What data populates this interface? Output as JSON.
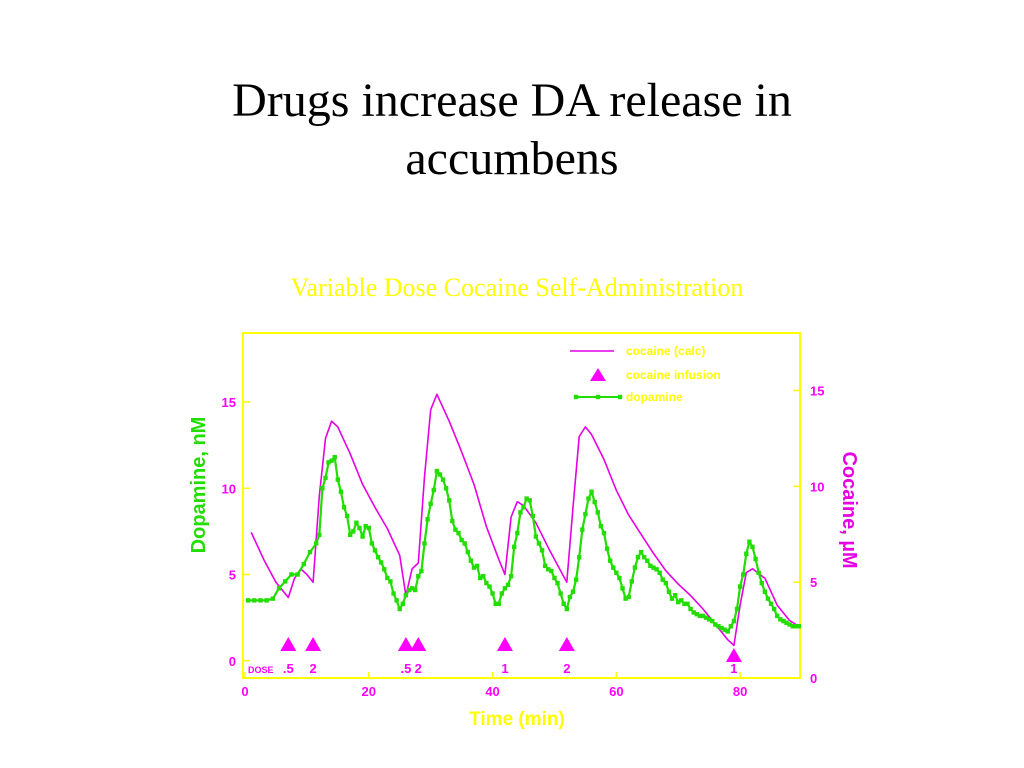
{
  "slide": {
    "title_line1": "Drugs increase DA release in",
    "title_line2": "accumbens"
  },
  "chart_data": {
    "type": "line",
    "title": "Variable Dose Cocaine Self-Administration",
    "xlabel": "Time (min)",
    "ylabel_left": "Dopamine, nM",
    "ylabel_right": "Cocaine, µM",
    "xlim": [
      0,
      90
    ],
    "ylim_left": [
      -1,
      19
    ],
    "ylim_right": [
      0,
      18
    ],
    "x_ticks": [
      0,
      20,
      40,
      60,
      80
    ],
    "y_ticks_left": [
      0,
      5,
      10,
      15
    ],
    "y_ticks_right": [
      0,
      5,
      10,
      15
    ],
    "colors": {
      "cocaine": "#e600e6",
      "dopamine": "#22dd00",
      "frame": "#ffff00",
      "title": "#ffff00",
      "xaxis_label": "#ffff00",
      "tick_labels": "#ff00ff"
    },
    "legend": {
      "placement": "top-right",
      "entries": [
        {
          "label": "cocaine (calc)",
          "kind": "line",
          "color": "#e600e6"
        },
        {
          "label": "cocaine infusion",
          "kind": "triangle",
          "color": "#ff00ff"
        },
        {
          "label": "dopamine",
          "kind": "line-square",
          "color": "#22dd00"
        }
      ]
    },
    "dose_label": "DOSE",
    "infusions": [
      {
        "time": 7,
        "dose": ".5"
      },
      {
        "time": 11,
        "dose": "2"
      },
      {
        "time": 26,
        "dose": ".5"
      },
      {
        "time": 28,
        "dose": "2"
      },
      {
        "time": 42,
        "dose": "1"
      },
      {
        "time": 52,
        "dose": "2"
      },
      {
        "time": 79,
        "dose": "1"
      }
    ],
    "series": [
      {
        "name": "cocaine (calc)",
        "axis": "right",
        "x": [
          1,
          3,
          5,
          7,
          8,
          9,
          10,
          11,
          12,
          13,
          14,
          15,
          17,
          19,
          21,
          23,
          25,
          26,
          27,
          28,
          29,
          30,
          31,
          33,
          35,
          37,
          39,
          41,
          42,
          43,
          44,
          45,
          47,
          49,
          51,
          52,
          53,
          54,
          55,
          56,
          58,
          60,
          62,
          64,
          66,
          68,
          70,
          72,
          74,
          76,
          78,
          79,
          80,
          81,
          82,
          84,
          86,
          88,
          89
        ],
        "values": [
          7.6,
          6.2,
          5.0,
          4.2,
          5.2,
          5.7,
          5.4,
          5.0,
          9.5,
          12.5,
          13.4,
          13.1,
          11.7,
          10.1,
          8.9,
          7.8,
          6.4,
          4.3,
          5.7,
          6.0,
          10.5,
          14.0,
          14.8,
          13.4,
          11.8,
          10.1,
          7.9,
          6.2,
          5.4,
          8.4,
          9.2,
          9.0,
          8.1,
          6.8,
          5.6,
          5.0,
          8.9,
          12.6,
          13.1,
          12.7,
          11.4,
          9.8,
          8.5,
          7.5,
          6.5,
          5.6,
          4.9,
          4.3,
          3.6,
          2.8,
          2.0,
          1.7,
          3.8,
          5.5,
          5.7,
          5.2,
          3.8,
          3.0,
          2.8
        ]
      },
      {
        "name": "dopamine",
        "axis": "left",
        "x": [
          0.5,
          1.5,
          2.5,
          3.5,
          4.5,
          5.5,
          6.5,
          7.5,
          8.5,
          9.5,
          10.5,
          11.5,
          12.0,
          12.5,
          13.0,
          13.5,
          14.0,
          14.5,
          15.0,
          15.5,
          16.0,
          16.5,
          17.0,
          17.5,
          18.0,
          18.5,
          19.0,
          19.5,
          20.0,
          20.5,
          21.0,
          21.5,
          22.0,
          22.5,
          23.0,
          23.5,
          24.0,
          24.5,
          25.0,
          25.5,
          26.0,
          26.5,
          27.0,
          27.5,
          28.0,
          28.5,
          29.0,
          29.5,
          30.0,
          30.5,
          31.0,
          31.5,
          32.0,
          32.5,
          33.0,
          33.5,
          34.0,
          34.5,
          35.0,
          35.5,
          36.0,
          36.5,
          37.0,
          37.5,
          38.0,
          38.5,
          39.0,
          39.5,
          40.0,
          40.5,
          41.0,
          41.5,
          42.0,
          42.5,
          43.0,
          43.5,
          44.0,
          44.5,
          45.0,
          45.5,
          46.0,
          46.5,
          47.0,
          47.5,
          48.0,
          48.5,
          49.0,
          49.5,
          50.0,
          50.5,
          51.0,
          51.5,
          52.0,
          52.5,
          53.0,
          53.5,
          54.0,
          54.5,
          55.0,
          55.5,
          56.0,
          56.5,
          57.0,
          57.5,
          58.0,
          58.5,
          59.0,
          59.5,
          60.0,
          60.5,
          61.0,
          61.5,
          62.0,
          62.5,
          63.0,
          63.5,
          64.0,
          64.5,
          65.0,
          65.5,
          66.0,
          66.5,
          67.0,
          67.5,
          68.0,
          68.5,
          69.0,
          69.5,
          70.0,
          70.5,
          71.0,
          71.5,
          72.0,
          72.5,
          73.0,
          73.5,
          74.0,
          74.5,
          75.0,
          75.5,
          76.0,
          76.5,
          77.0,
          77.5,
          78.0,
          78.5,
          79.0,
          79.5,
          80.0,
          80.5,
          81.0,
          81.5,
          82.0,
          82.5,
          83.0,
          83.5,
          84.0,
          84.5,
          85.0,
          85.5,
          86.0,
          86.5,
          87.0,
          87.5,
          88.0,
          88.5,
          89.0,
          89.5
        ],
        "values": [
          3.5,
          3.5,
          3.5,
          3.5,
          3.6,
          4.2,
          4.6,
          5.0,
          5.0,
          5.6,
          6.3,
          6.8,
          7.3,
          10.0,
          10.6,
          11.5,
          11.6,
          11.8,
          10.5,
          9.8,
          8.9,
          8.4,
          7.3,
          7.5,
          8.0,
          7.7,
          7.2,
          7.8,
          7.7,
          6.8,
          6.4,
          6.0,
          5.7,
          5.3,
          4.8,
          4.6,
          3.9,
          3.5,
          3.0,
          3.3,
          3.8,
          4.1,
          4.2,
          4.1,
          4.9,
          5.2,
          6.8,
          8.2,
          9.1,
          9.9,
          11.0,
          10.8,
          10.5,
          10.0,
          9.3,
          8.1,
          7.6,
          7.4,
          7.0,
          6.8,
          6.3,
          5.8,
          5.4,
          5.5,
          4.8,
          4.9,
          4.5,
          4.3,
          3.9,
          3.3,
          3.3,
          3.9,
          4.2,
          4.4,
          4.9,
          6.6,
          7.4,
          8.6,
          8.9,
          9.4,
          9.3,
          8.4,
          7.2,
          6.8,
          6.4,
          5.5,
          5.3,
          5.2,
          4.8,
          4.5,
          3.9,
          3.3,
          3.0,
          3.7,
          4.0,
          4.7,
          6.0,
          7.6,
          8.5,
          9.4,
          9.8,
          9.2,
          8.6,
          7.8,
          7.4,
          6.5,
          5.8,
          5.4,
          5.1,
          4.8,
          4.2,
          3.6,
          3.7,
          4.6,
          5.4,
          6.0,
          6.3,
          6.0,
          5.8,
          5.5,
          5.4,
          5.3,
          5.1,
          4.7,
          4.5,
          4.0,
          3.6,
          3.8,
          3.4,
          3.5,
          3.3,
          3.3,
          3.0,
          2.8,
          2.7,
          2.6,
          2.6,
          2.5,
          2.4,
          2.3,
          2.1,
          2.0,
          1.9,
          1.8,
          1.7,
          2.0,
          2.3,
          3.0,
          4.3,
          5.0,
          6.2,
          6.9,
          6.6,
          5.9,
          5.1,
          4.5,
          4.0,
          3.6,
          3.3,
          3.0,
          2.6,
          2.4,
          2.3,
          2.2,
          2.1,
          2.0,
          2.0,
          2.0
        ]
      }
    ]
  }
}
